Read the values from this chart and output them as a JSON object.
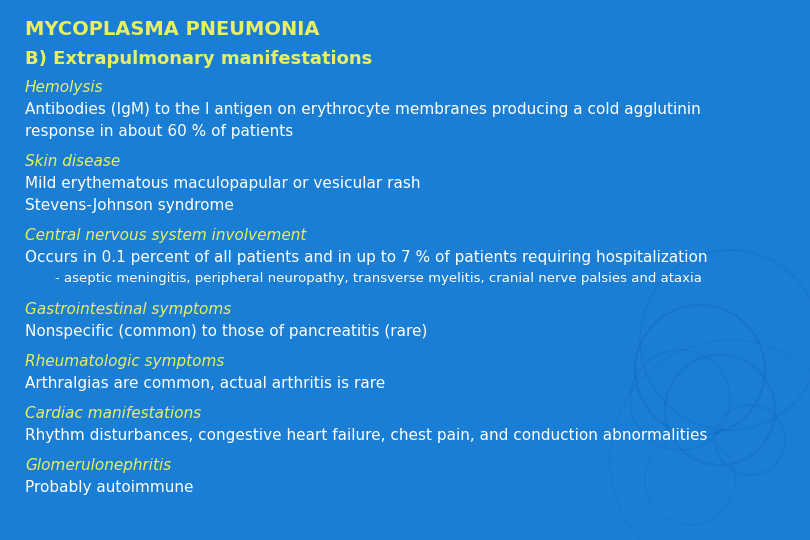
{
  "background_color": "#1a7fd4",
  "title": "MYCOPLASMA PNEUMONIA",
  "title_color": "#e8f060",
  "title_fontsize": 14,
  "subtitle": "B) Extrapulmonary manifestations",
  "subtitle_color": "#e8f060",
  "subtitle_fontsize": 13,
  "yellow_color": "#e8f060",
  "white_color": "#FFFFFF",
  "circle_color1": "#1570c0",
  "circle_color2": "#1060b0",
  "lines": [
    {
      "text": "Hemolysis",
      "color": "#e8f060",
      "italic": true,
      "indent": 0,
      "fontsize": 11,
      "extra_after": false
    },
    {
      "text": "Antibodies (IgM) to the I antigen on erythrocyte membranes producing a cold agglutinin",
      "color": "#FFFFFF",
      "italic": false,
      "indent": 0,
      "fontsize": 11,
      "extra_after": false
    },
    {
      "text": "response in about 60 % of patients",
      "color": "#FFFFFF",
      "italic": false,
      "indent": 0,
      "fontsize": 11,
      "extra_after": true
    },
    {
      "text": "Skin disease",
      "color": "#e8f060",
      "italic": true,
      "indent": 0,
      "fontsize": 11,
      "extra_after": false
    },
    {
      "text": "Mild erythematous maculopapular or vesicular rash",
      "color": "#FFFFFF",
      "italic": false,
      "indent": 0,
      "fontsize": 11,
      "extra_after": false
    },
    {
      "text": "Stevens-Johnson syndrome",
      "color": "#FFFFFF",
      "italic": false,
      "indent": 0,
      "fontsize": 11,
      "extra_after": true
    },
    {
      "text": "Central nervous system involvement",
      "color": "#e8f060",
      "italic": true,
      "indent": 0,
      "fontsize": 11,
      "extra_after": false
    },
    {
      "text": "Occurs in 0.1 percent of all patients and in up to 7 % of patients requiring hospitalization",
      "color": "#FFFFFF",
      "italic": false,
      "indent": 0,
      "fontsize": 11,
      "extra_after": false
    },
    {
      "text": "- aseptic meningitis, peripheral neuropathy, transverse myelitis, cranial nerve palsies and ataxia",
      "color": "#FFFFFF",
      "italic": false,
      "indent": 1,
      "fontsize": 9.5,
      "extra_after": true
    },
    {
      "text": "Gastrointestinal symptoms",
      "color": "#e8f060",
      "italic": true,
      "indent": 0,
      "fontsize": 11,
      "extra_after": false
    },
    {
      "text": "Nonspecific (common) to those of pancreatitis (rare)",
      "color": "#FFFFFF",
      "italic": false,
      "indent": 0,
      "fontsize": 11,
      "extra_after": true
    },
    {
      "text": "Rheumatologic symptoms",
      "color": "#e8f060",
      "italic": true,
      "indent": 0,
      "fontsize": 11,
      "extra_after": false
    },
    {
      "text": "Arthralgias are common, actual arthritis is rare",
      "color": "#FFFFFF",
      "italic": false,
      "indent": 0,
      "fontsize": 11,
      "extra_after": true
    },
    {
      "text": "Cardiac manifestations",
      "color": "#e8f060",
      "italic": true,
      "indent": 0,
      "fontsize": 11,
      "extra_after": false
    },
    {
      "text": "Rhythm disturbances, congestive heart failure, chest pain, and conduction abnormalities",
      "color": "#FFFFFF",
      "italic": false,
      "indent": 0,
      "fontsize": 11,
      "extra_after": true
    },
    {
      "text": "Glomerulonephritis",
      "color": "#e8f060",
      "italic": true,
      "indent": 0,
      "fontsize": 11,
      "extra_after": false
    },
    {
      "text": "Probably autoimmune",
      "color": "#FFFFFF",
      "italic": false,
      "indent": 0,
      "fontsize": 11,
      "extra_after": false
    }
  ]
}
